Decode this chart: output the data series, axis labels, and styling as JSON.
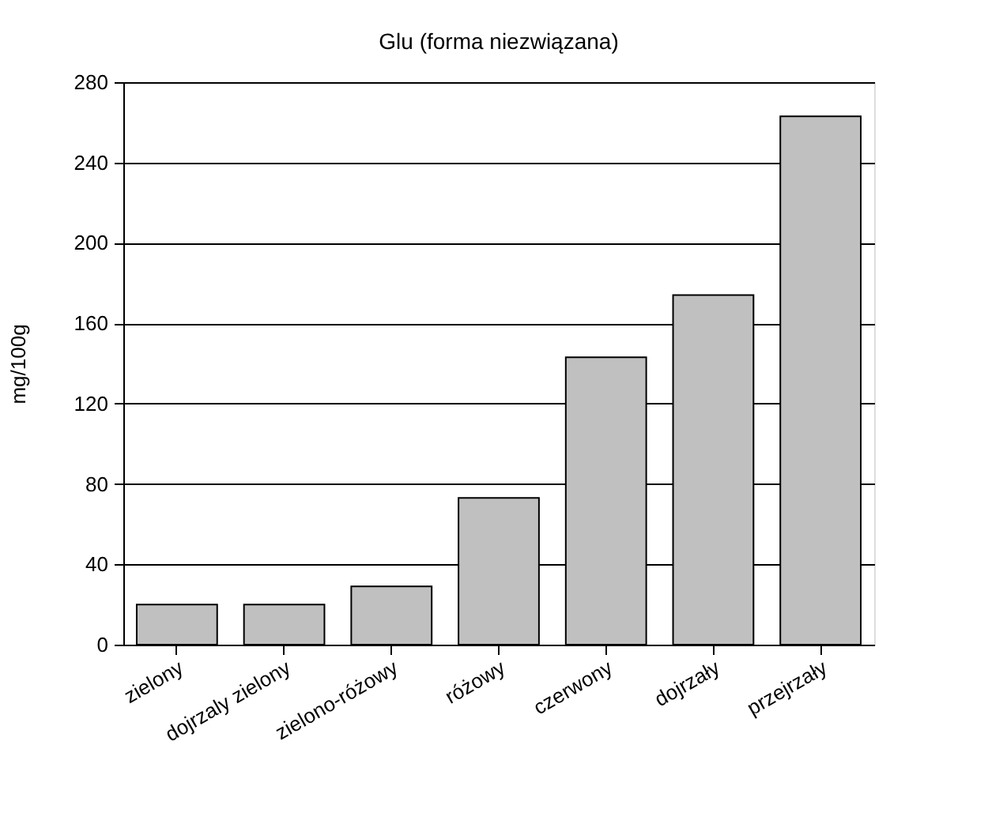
{
  "chart_data": {
    "type": "bar",
    "title": "Glu (forma niezwiązana)",
    "ylabel": "mg/100g",
    "categories": [
      "zielony",
      "dojrzaly zielony",
      "zielono-różowy",
      "różowy",
      "czerwony",
      "dojrzały",
      "przejrzały"
    ],
    "values": [
      20,
      20,
      29,
      73,
      143,
      174,
      263
    ],
    "color": "#c0c0c0",
    "ylim": [
      0,
      280
    ],
    "yticks": [
      0,
      40,
      80,
      120,
      160,
      200,
      240,
      280
    ],
    "grid": "y"
  }
}
